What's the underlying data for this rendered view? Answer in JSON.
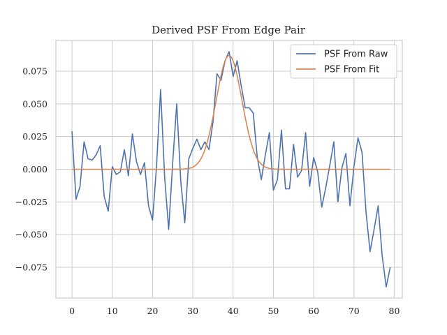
{
  "chart_data": {
    "type": "line",
    "title": "Derived PSF From Edge Pair",
    "xlabel": "",
    "ylabel": "",
    "xlim": [
      -4,
      82
    ],
    "ylim": [
      -0.0985,
      0.0985
    ],
    "xticks": [
      0,
      10,
      20,
      30,
      40,
      50,
      60,
      70,
      80
    ],
    "xtick_labels": [
      "0",
      "10",
      "20",
      "30",
      "40",
      "50",
      "60",
      "70",
      "80"
    ],
    "yticks": [
      -0.075,
      -0.05,
      -0.025,
      0.0,
      0.025,
      0.05,
      0.075
    ],
    "ytick_labels": [
      "−0.075",
      "−0.050",
      "−0.025",
      "0.000",
      "0.025",
      "0.050",
      "0.075"
    ],
    "grid": true,
    "legend_position": "top-right",
    "series": [
      {
        "name": "PSF From Raw",
        "color": "#4c72b0",
        "x": [
          0,
          1,
          2,
          3,
          4,
          5,
          6,
          7,
          8,
          9,
          10,
          11,
          12,
          13,
          14,
          15,
          16,
          17,
          18,
          19,
          20,
          21,
          22,
          23,
          24,
          25,
          26,
          27,
          28,
          29,
          30,
          31,
          32,
          33,
          34,
          35,
          36,
          37,
          38,
          39,
          40,
          41,
          42,
          43,
          44,
          45,
          46,
          47,
          48,
          49,
          50,
          51,
          52,
          53,
          54,
          55,
          56,
          57,
          58,
          59,
          60,
          61,
          62,
          63,
          64,
          65,
          66,
          67,
          68,
          69,
          70,
          71,
          72,
          73,
          74,
          75,
          76,
          77,
          78,
          79
        ],
        "y": [
          0.029,
          -0.023,
          -0.013,
          0.021,
          0.008,
          0.007,
          0.011,
          0.018,
          -0.021,
          -0.032,
          0.002,
          -0.004,
          -0.002,
          0.015,
          -0.005,
          0.027,
          0.006,
          -0.004,
          0.005,
          -0.028,
          -0.039,
          0.003,
          0.061,
          -0.006,
          -0.046,
          0.005,
          0.05,
          -0.009,
          -0.041,
          0.008,
          0.016,
          0.023,
          0.015,
          0.021,
          0.015,
          0.036,
          0.073,
          0.068,
          0.083,
          0.09,
          0.071,
          0.083,
          0.064,
          0.047,
          0.047,
          0.043,
          0.009,
          -0.008,
          0.011,
          0.028,
          -0.016,
          -0.008,
          0.03,
          -0.015,
          -0.015,
          0.019,
          -0.006,
          -0.001,
          0.028,
          -0.013,
          0.009,
          -0.002,
          -0.029,
          -0.014,
          0.003,
          0.021,
          -0.025,
          0.001,
          0.012,
          -0.028,
          0.002,
          0.024,
          0.013,
          -0.033,
          -0.063,
          -0.046,
          -0.028,
          -0.066,
          -0.09,
          -0.075
        ]
      },
      {
        "name": "PSF From Fit",
        "color": "#dd8452",
        "center": 39,
        "amplitude": 0.087,
        "sigma": 3.2,
        "x_start": 0,
        "x_end": 79
      }
    ]
  }
}
